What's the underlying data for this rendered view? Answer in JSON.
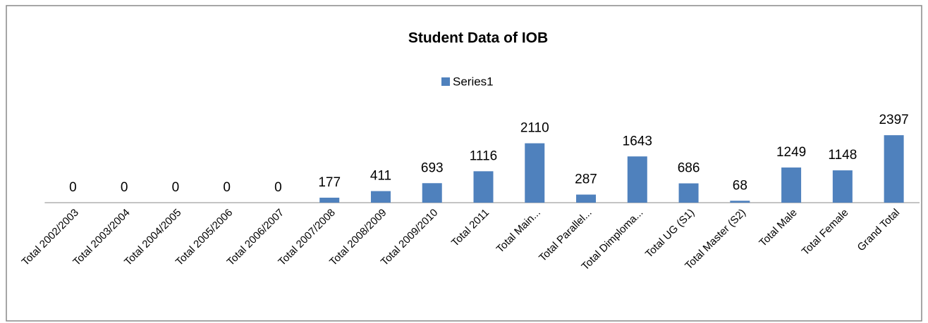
{
  "chart_data": {
    "type": "bar",
    "title": "Student Data of IOB",
    "categories": [
      "Total 2002/2003",
      "Total 2003/2004",
      "Total 2004/2005",
      "Total 2005/2006",
      "Total 2006/2007",
      "Total 2007/2008",
      "Total 2008/2009",
      "Total 2009/2010",
      "Total 2011",
      "Total Main...",
      "Total Parallel...",
      "Total Dimploma...",
      "Total UG (S1)",
      "Total Master (S2)",
      "Total Male",
      "Total Female",
      "Grand Total"
    ],
    "series": [
      {
        "name": "Series1",
        "color": "#4f81bd",
        "values": [
          0,
          0,
          0,
          0,
          0,
          177,
          411,
          693,
          1116,
          2110,
          287,
          1643,
          686,
          68,
          1249,
          1148,
          2397
        ]
      }
    ],
    "ylim": [
      0,
      3000
    ],
    "legend": "top"
  }
}
